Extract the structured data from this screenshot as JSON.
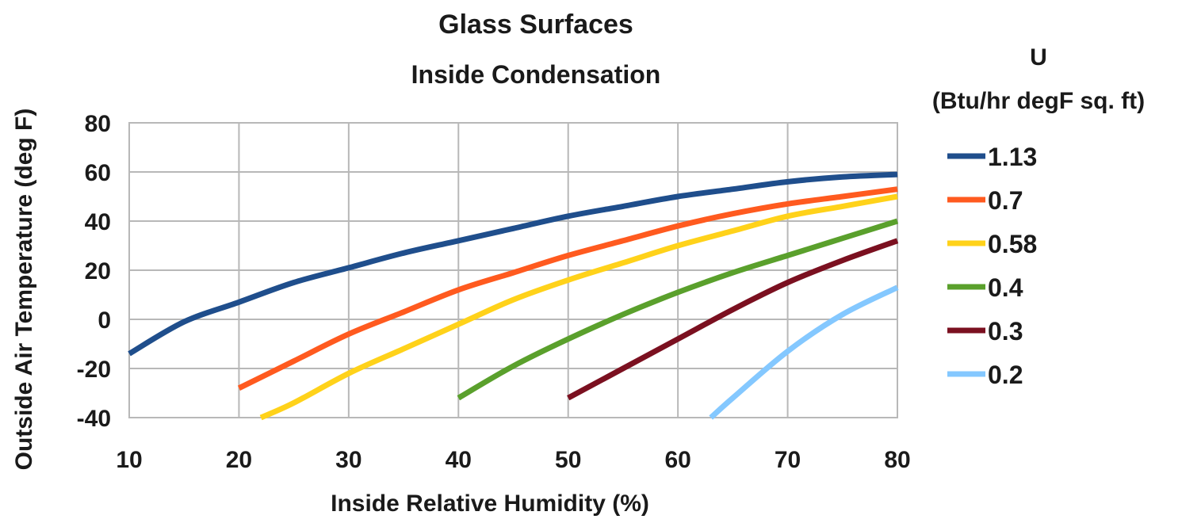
{
  "chart_data": {
    "type": "line",
    "title": "Glass Surfaces",
    "subtitle": "Inside Condensation",
    "xlabel": "Inside Relative Humidity (%)",
    "ylabel": "Outside Air Temperature (deg F)",
    "xlim": [
      10,
      80
    ],
    "ylim": [
      -40,
      80
    ],
    "xticks": [
      10,
      20,
      30,
      40,
      50,
      60,
      70,
      80
    ],
    "yticks": [
      -40,
      -20,
      0,
      20,
      40,
      60,
      80
    ],
    "grid": true,
    "legend": {
      "title_line1": "U",
      "title_line2": "(Btu/hr degF sq. ft)",
      "placement": "right"
    },
    "series": [
      {
        "name": "1.13",
        "color": "#1f4e8c",
        "x": [
          10,
          15,
          20,
          25,
          30,
          35,
          40,
          45,
          50,
          55,
          60,
          65,
          70,
          75,
          80
        ],
        "y": [
          -14,
          -1,
          7,
          15,
          21,
          27,
          32,
          37,
          42,
          46,
          50,
          53,
          56,
          58,
          59
        ]
      },
      {
        "name": "0.7",
        "color": "#ff5a1f",
        "x": [
          20,
          25,
          30,
          35,
          40,
          45,
          50,
          55,
          60,
          65,
          70,
          75,
          80
        ],
        "y": [
          -28,
          -17,
          -6,
          3,
          12,
          19,
          26,
          32,
          38,
          43,
          47,
          50,
          53
        ]
      },
      {
        "name": "0.58",
        "color": "#ffd21a",
        "x": [
          22,
          25,
          30,
          35,
          40,
          45,
          50,
          55,
          60,
          65,
          70,
          75,
          80
        ],
        "y": [
          -40,
          -34,
          -22,
          -12,
          -2,
          8,
          16,
          23,
          30,
          36,
          42,
          46,
          50
        ]
      },
      {
        "name": "0.4",
        "color": "#5aa02c",
        "x": [
          40,
          45,
          50,
          55,
          60,
          65,
          70,
          75,
          80
        ],
        "y": [
          -32,
          -19,
          -8,
          2,
          11,
          19,
          26,
          33,
          40
        ]
      },
      {
        "name": "0.3",
        "color": "#7b1020",
        "x": [
          50,
          55,
          60,
          65,
          70,
          75,
          80
        ],
        "y": [
          -32,
          -20,
          -8,
          4,
          15,
          24,
          32
        ]
      },
      {
        "name": "0.2",
        "color": "#84c8ff",
        "x": [
          63,
          65,
          70,
          75,
          80
        ],
        "y": [
          -40,
          -32,
          -13,
          2,
          13
        ]
      }
    ]
  }
}
